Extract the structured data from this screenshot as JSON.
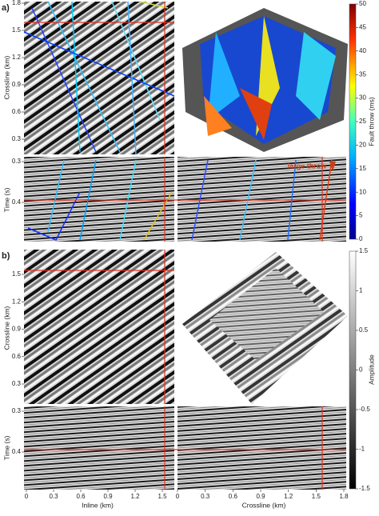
{
  "panel_a": {
    "label": "a)",
    "crossline_axis": {
      "title": "Crossline (km)",
      "ticks": [
        0.3,
        0.6,
        0.9,
        1.2,
        1.5,
        1.8
      ]
    },
    "time_axis": {
      "title": "Time (s)",
      "ticks": [
        0.3,
        0.4
      ]
    },
    "colorbar": {
      "title": "Fault throw (ms)",
      "ticks": [
        0,
        5,
        10,
        15,
        20,
        25,
        30,
        35,
        40,
        45,
        50
      ]
    },
    "annotation": "large throw"
  },
  "panel_b": {
    "label": "b)",
    "crossline_axis": {
      "title": "Crossline (km)",
      "ticks": [
        0.3,
        0.6,
        0.9,
        1.2,
        1.5
      ]
    },
    "time_axis": {
      "title": "Time (s)",
      "ticks": [
        0.3,
        0.4
      ]
    },
    "colorbar": {
      "title": "Amplitude",
      "ticks": [
        -1.5,
        -1,
        -0.5,
        0,
        0.5,
        1,
        1.5
      ]
    },
    "inline_axis": {
      "title": "Inline (km)",
      "ticks": [
        0,
        0.3,
        0.6,
        0.9,
        1.2,
        1.5
      ]
    },
    "crossline_bottom_axis": {
      "title": "Crossline (km)",
      "ticks": [
        0,
        0.3,
        0.6,
        0.9,
        1.2,
        1.5,
        1.8
      ]
    }
  }
}
